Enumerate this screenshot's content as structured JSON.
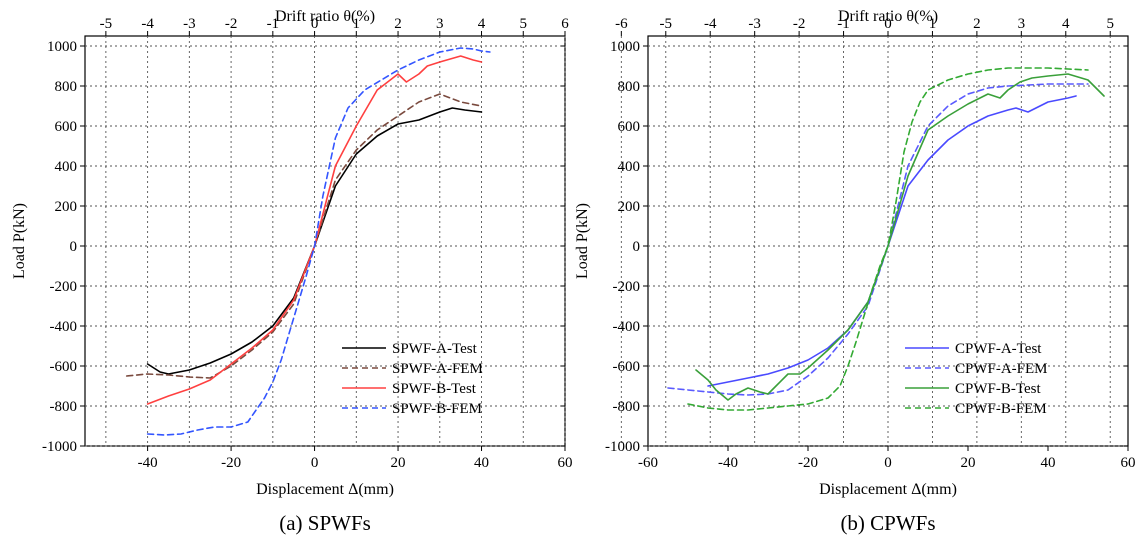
{
  "chart_data": [
    {
      "type": "line",
      "caption": "(a) SPWFs",
      "xlabel": "Displacement Δ(mm)",
      "ylabel": "Load P(kN)",
      "x2label": "Drift ratio θ(%)",
      "xlim": [
        -55,
        60
      ],
      "ylim": [
        -1000,
        1050
      ],
      "xticks": [
        -40,
        -20,
        0,
        20,
        40,
        60
      ],
      "x2ticks": [
        -5,
        -4,
        -3,
        -2,
        -1,
        0,
        1,
        2,
        3,
        4,
        5,
        6
      ],
      "x2_per_x": 0.1,
      "yticks": [
        -1000,
        -800,
        -600,
        -400,
        -200,
        0,
        200,
        400,
        600,
        800,
        1000
      ],
      "grid": true,
      "legend_position": "bottom-right",
      "series": [
        {
          "name": "SPWF-A-Test",
          "color": "#000000",
          "dash": "solid",
          "x": [
            -40,
            -37,
            -35,
            -30,
            -25,
            -20,
            -15,
            -10,
            -5,
            0,
            5,
            10,
            15,
            20,
            25,
            30,
            33,
            36,
            40
          ],
          "y": [
            -590,
            -630,
            -640,
            -620,
            -585,
            -540,
            -480,
            -400,
            -260,
            0,
            300,
            460,
            550,
            610,
            630,
            670,
            690,
            680,
            670
          ]
        },
        {
          "name": "SPWF-A-FEM",
          "color": "#7a4a3e",
          "dash": "dashed",
          "x": [
            -45,
            -40,
            -35,
            -30,
            -25,
            -20,
            -15,
            -10,
            -5,
            0,
            5,
            10,
            15,
            20,
            25,
            30,
            35,
            40
          ],
          "y": [
            -650,
            -640,
            -645,
            -655,
            -660,
            -600,
            -520,
            -430,
            -290,
            0,
            330,
            480,
            580,
            650,
            720,
            760,
            720,
            700
          ]
        },
        {
          "name": "SPWF-B-Test",
          "color": "#ff4040",
          "dash": "solid",
          "x": [
            -40,
            -35,
            -30,
            -25,
            -20,
            -15,
            -10,
            -5,
            0,
            5,
            10,
            15,
            20,
            22,
            25,
            27,
            30,
            35,
            38,
            40
          ],
          "y": [
            -790,
            -750,
            -715,
            -670,
            -590,
            -510,
            -420,
            -270,
            0,
            400,
            600,
            780,
            860,
            820,
            860,
            900,
            920,
            950,
            930,
            920
          ]
        },
        {
          "name": "SPWF-B-FEM",
          "color": "#3355ff",
          "dash": "dashed",
          "x": [
            -40,
            -36,
            -32,
            -28,
            -24,
            -20,
            -16,
            -14,
            -12,
            -10,
            -8,
            -6,
            -4,
            -2,
            0,
            2,
            5,
            8,
            12,
            16,
            20,
            25,
            30,
            35,
            38,
            40,
            42
          ],
          "y": [
            -940,
            -945,
            -940,
            -920,
            -905,
            -905,
            -880,
            -820,
            -760,
            -680,
            -570,
            -430,
            -290,
            -150,
            0,
            250,
            540,
            690,
            780,
            830,
            880,
            930,
            970,
            990,
            985,
            975,
            970
          ]
        }
      ]
    },
    {
      "type": "line",
      "caption": "(b) CPWFs",
      "xlabel": "Displacement Δ(mm)",
      "ylabel": "Load P(kN)",
      "x2label": "Drift ratio θ(%)",
      "xlim": [
        -60,
        60
      ],
      "ylim": [
        -1000,
        1050
      ],
      "xticks": [
        -60,
        -40,
        -20,
        0,
        20,
        40,
        60
      ],
      "x2ticks": [
        -6,
        -5,
        -4,
        -3,
        -2,
        -1,
        0,
        1,
        2,
        3,
        4,
        5
      ],
      "x2_per_x": 0.09,
      "yticks": [
        -1000,
        -800,
        -600,
        -400,
        -200,
        0,
        200,
        400,
        600,
        800,
        1000
      ],
      "grid": true,
      "legend_position": "bottom-right",
      "series": [
        {
          "name": "CPWF-A-Test",
          "color": "#4a4aff",
          "dash": "solid",
          "x": [
            -45,
            -40,
            -35,
            -30,
            -25,
            -20,
            -15,
            -10,
            -5,
            0,
            5,
            10,
            15,
            20,
            25,
            30,
            32,
            35,
            38,
            40,
            45,
            47
          ],
          "y": [
            -700,
            -680,
            -660,
            -640,
            -610,
            -570,
            -510,
            -420,
            -280,
            0,
            300,
            430,
            530,
            600,
            650,
            680,
            690,
            670,
            700,
            720,
            740,
            750
          ]
        },
        {
          "name": "CPWF-A-FEM",
          "color": "#5a5aff",
          "dash": "dashed",
          "x": [
            -55,
            -45,
            -40,
            -35,
            -30,
            -25,
            -20,
            -15,
            -10,
            -5,
            0,
            5,
            10,
            15,
            20,
            25,
            30,
            35,
            40,
            45,
            50
          ],
          "y": [
            -710,
            -730,
            -740,
            -745,
            -740,
            -720,
            -650,
            -560,
            -440,
            -300,
            0,
            400,
            600,
            700,
            760,
            790,
            800,
            805,
            810,
            810,
            810
          ]
        },
        {
          "name": "CPWF-B-Test",
          "color": "#3aa03a",
          "dash": "solid",
          "x": [
            -48,
            -45,
            -43,
            -40,
            -38,
            -35,
            -32,
            -30,
            -28,
            -25,
            -22,
            -20,
            -15,
            -10,
            -5,
            0,
            5,
            10,
            15,
            20,
            25,
            28,
            30,
            33,
            36,
            40,
            45,
            50,
            54
          ],
          "y": [
            -620,
            -670,
            -720,
            -770,
            -740,
            -710,
            -730,
            -740,
            -700,
            -640,
            -640,
            -610,
            -520,
            -420,
            -280,
            0,
            350,
            580,
            650,
            710,
            760,
            740,
            780,
            820,
            840,
            850,
            860,
            830,
            750
          ]
        },
        {
          "name": "CPWF-B-FEM",
          "color": "#33aa33",
          "dash": "dashed",
          "x": [
            -50,
            -45,
            -40,
            -35,
            -30,
            -25,
            -20,
            -15,
            -12,
            -10,
            -8,
            -6,
            -4,
            -2,
            0,
            2,
            4,
            6,
            8,
            10,
            15,
            20,
            25,
            30,
            35,
            40,
            45,
            50
          ],
          "y": [
            -790,
            -810,
            -820,
            -820,
            -810,
            -800,
            -790,
            -760,
            -700,
            -600,
            -480,
            -350,
            -220,
            -100,
            0,
            220,
            470,
            620,
            720,
            780,
            830,
            860,
            880,
            890,
            890,
            890,
            885,
            880
          ]
        }
      ]
    }
  ]
}
